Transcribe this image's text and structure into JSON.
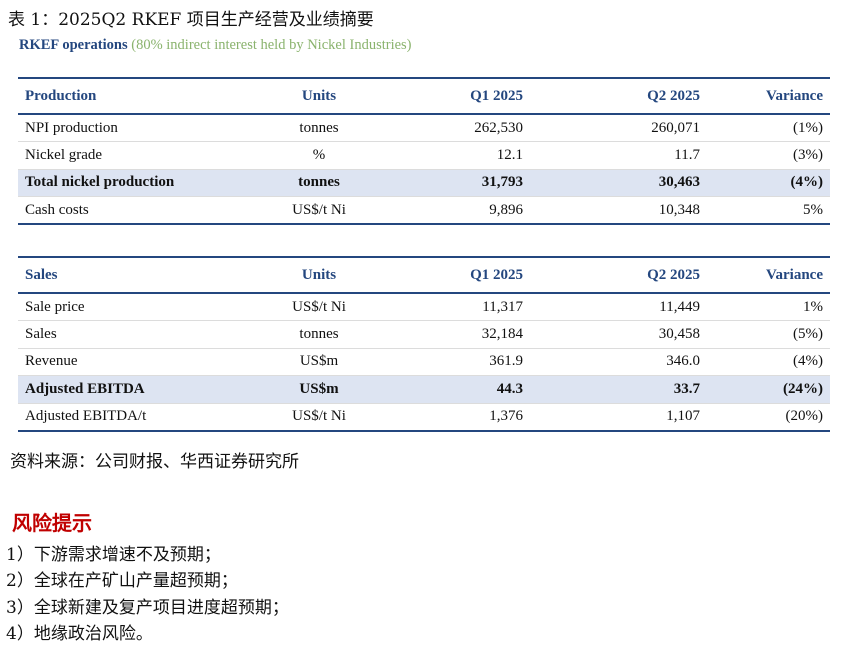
{
  "caption": "表 1：2025Q2 RKEF 项目生产经营及业绩摘要",
  "subtitle": {
    "bold": "RKEF operations",
    "light": " (80% indirect interest held by Nickel Industries)"
  },
  "production_table": {
    "headers": [
      "Production",
      "Units",
      "Q1 2025",
      "Q2 2025",
      "Variance"
    ],
    "rows": [
      {
        "cells": [
          "NPI production",
          "tonnes",
          "262,530",
          "260,071",
          "(1%)"
        ],
        "highlight": false
      },
      {
        "cells": [
          "Nickel grade",
          "%",
          "12.1",
          "11.7",
          "(3%)"
        ],
        "highlight": false
      },
      {
        "cells": [
          "Total nickel production",
          "tonnes",
          "31,793",
          "30,463",
          "(4%)"
        ],
        "highlight": true
      },
      {
        "cells": [
          "Cash costs",
          "US$/t Ni",
          "9,896",
          "10,348",
          "5%"
        ],
        "highlight": false
      }
    ]
  },
  "sales_table": {
    "headers": [
      "Sales",
      "Units",
      "Q1 2025",
      "Q2 2025",
      "Variance"
    ],
    "rows": [
      {
        "cells": [
          "Sale price",
          "US$/t Ni",
          "11,317",
          "11,449",
          "1%"
        ],
        "highlight": false
      },
      {
        "cells": [
          "Sales",
          "tonnes",
          "32,184",
          "30,458",
          "(5%)"
        ],
        "highlight": false
      },
      {
        "cells": [
          "Revenue",
          "US$m",
          "361.9",
          "346.0",
          "(4%)"
        ],
        "highlight": false
      },
      {
        "cells": [
          "Adjusted EBITDA",
          "US$m",
          "44.3",
          "33.7",
          "(24%)"
        ],
        "highlight": true
      },
      {
        "cells": [
          "Adjusted EBITDA/t",
          "US$/t Ni",
          "1,376",
          "1,107",
          "(20%)"
        ],
        "highlight": false
      }
    ]
  },
  "source": "资料来源：公司财报、华西证券研究所",
  "risk": {
    "title": "风险提示",
    "items": [
      "1）下游需求增速不及预期；",
      "2）全球在产矿山产量超预期；",
      "3）全球新建及复产项目进度超预期；",
      "4）地缘政治风险。"
    ]
  }
}
